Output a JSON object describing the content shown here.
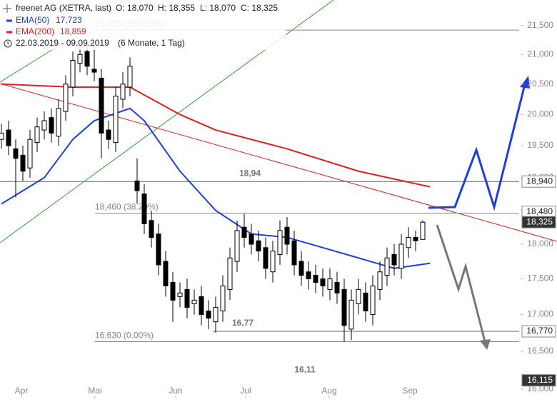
{
  "chart_data": {
    "type": "candlestick",
    "title": "freenet AG (XETRA, last)",
    "ohlc": [
      "O: 18,070",
      "H: 18,355",
      "L: 18,070",
      "C: 18,325"
    ],
    "date_range": "22.03.2019 - 09.09.2019",
    "period": "(6 Monate, 1 Tag)",
    "log_scale": true,
    "x": [
      0,
      2,
      4,
      6,
      8,
      10,
      12,
      14,
      16,
      18,
      20,
      22,
      24,
      26,
      28,
      30,
      32,
      34,
      36,
      38,
      40,
      42,
      44,
      46,
      48,
      50,
      52,
      54,
      56,
      58,
      60,
      62,
      64,
      66,
      68,
      70,
      72,
      74,
      76,
      78,
      80,
      82,
      84,
      86,
      88,
      90,
      92,
      94,
      96,
      98,
      100,
      102,
      104,
      106,
      108,
      110,
      112,
      114,
      116,
      118
    ],
    "open": [
      19.6,
      19.75,
      19.45,
      19.35,
      19.15,
      19.55,
      19.75,
      19.95,
      19.65,
      20.05,
      20.45,
      20.85,
      21.05,
      20.75,
      20.6,
      19.75,
      19.55,
      20.25,
      20.45,
      18.95,
      18.75,
      18.35,
      18.15,
      17.75,
      17.45,
      17.25,
      17.35,
      17.15,
      17.25,
      17.05,
      16.9,
      17.05,
      17.35,
      17.75,
      18.25,
      18.15,
      18.05,
      17.95,
      17.6,
      17.85,
      18.25,
      18.05,
      17.75,
      17.6,
      17.55,
      17.5,
      17.35,
      17.45,
      17.35,
      16.8,
      17.15,
      17.3,
      17.0,
      17.35,
      17.55,
      17.85,
      17.65,
      17.95,
      18.1,
      18.07
    ],
    "high": [
      19.85,
      19.9,
      19.6,
      19.5,
      19.75,
      19.95,
      20.05,
      20.1,
      20.25,
      20.65,
      21.05,
      21.2,
      21.2,
      21.2,
      20.75,
      19.9,
      20.45,
      20.7,
      20.95,
      19.3,
      18.9,
      18.5,
      18.3,
      17.9,
      17.6,
      17.45,
      17.5,
      17.35,
      17.4,
      17.2,
      17.25,
      17.55,
      17.95,
      18.35,
      18.45,
      18.3,
      18.2,
      18.1,
      18.05,
      18.35,
      18.4,
      18.2,
      17.9,
      17.75,
      17.7,
      17.65,
      17.65,
      17.6,
      17.5,
      17.35,
      17.5,
      17.45,
      17.55,
      17.75,
      17.95,
      18.0,
      18.15,
      18.25,
      18.2,
      18.355
    ],
    "low": [
      19.45,
      19.35,
      18.7,
      18.95,
      19.0,
      19.4,
      19.6,
      19.55,
      19.5,
      19.9,
      20.3,
      20.7,
      20.65,
      20.55,
      19.3,
      19.45,
      19.4,
      20.1,
      20.3,
      18.6,
      18.15,
      17.95,
      17.55,
      17.25,
      16.9,
      17.1,
      16.95,
      17.0,
      16.85,
      16.8,
      16.75,
      16.9,
      17.2,
      17.6,
      17.95,
      17.85,
      17.75,
      17.5,
      17.45,
      17.7,
      17.85,
      17.55,
      17.4,
      17.35,
      17.3,
      17.25,
      17.2,
      17.15,
      16.63,
      16.65,
      17.0,
      16.9,
      16.85,
      17.2,
      17.4,
      17.55,
      17.5,
      17.8,
      17.9,
      18.07
    ],
    "close": [
      19.7,
      19.5,
      19.3,
      19.1,
      19.6,
      19.8,
      19.9,
      19.7,
      20.1,
      20.5,
      20.9,
      21.0,
      20.8,
      20.7,
      19.7,
      19.6,
      20.3,
      20.5,
      20.8,
      18.8,
      18.3,
      18.1,
      17.7,
      17.4,
      17.2,
      17.3,
      17.1,
      17.2,
      17.0,
      16.95,
      17.1,
      17.4,
      17.8,
      18.2,
      18.1,
      18.0,
      17.9,
      17.65,
      17.9,
      18.2,
      18.0,
      17.7,
      17.55,
      17.5,
      17.45,
      17.4,
      17.5,
      17.3,
      16.85,
      17.2,
      17.35,
      17.05,
      17.4,
      17.6,
      17.8,
      17.7,
      18.0,
      18.1,
      18.05,
      18.325
    ],
    "series": [
      {
        "name": "EMA(50)",
        "last_label": "17,723",
        "color": "#1f3fd6",
        "x": [
          0,
          12,
          20,
          26,
          36,
          40,
          50,
          60,
          70,
          80,
          90,
          100,
          110,
          120
        ],
        "values": [
          18.6,
          19.0,
          19.6,
          19.9,
          20.1,
          19.9,
          19.1,
          18.5,
          18.15,
          18.1,
          17.95,
          17.8,
          17.65,
          17.723
        ]
      },
      {
        "name": "EMA(200)",
        "last_label": "18,859",
        "color": "#e02020",
        "x": [
          0,
          20,
          36,
          50,
          60,
          80,
          100,
          120
        ],
        "values": [
          20.5,
          20.45,
          20.45,
          20.0,
          19.75,
          19.45,
          19.1,
          18.859
        ]
      }
    ],
    "xlim": [
      0,
      145
    ],
    "ylim": [
      15.88,
      21.95
    ],
    "xticks": [
      {
        "value": 5.6,
        "label": "Apr"
      },
      {
        "value": 26.2,
        "label": "Mai"
      },
      {
        "value": 48.8,
        "label": "Jun"
      },
      {
        "value": 68.4,
        "label": "Jul"
      },
      {
        "value": 91.8,
        "label": "Aug"
      },
      {
        "value": 114.4,
        "label": "Sep"
      }
    ],
    "yticks": [
      {
        "value": 21.5,
        "label": "21,500"
      },
      {
        "value": 21,
        "label": "21,000"
      },
      {
        "value": 20.5,
        "label": "20,500"
      },
      {
        "value": 20,
        "label": "20,000"
      },
      {
        "value": 19.5,
        "label": "19,500"
      },
      {
        "value": 19,
        "label": "19,000"
      },
      {
        "value": 18.5,
        "label": "18,500"
      },
      {
        "value": 18,
        "label": "18,000"
      },
      {
        "value": 17.5,
        "label": "17,500"
      },
      {
        "value": 17,
        "label": "17,000"
      },
      {
        "value": 16.5,
        "label": "16,500"
      },
      {
        "value": 16,
        "label": "16,000"
      }
    ],
    "fib_levels": [
      {
        "value": 21.42,
        "label": "21,420 (100.00%)"
      },
      {
        "value": 18.46,
        "label": "18,460 (38.20%)"
      },
      {
        "value": 16.63,
        "label": "16,630 (0.00%)"
      }
    ],
    "levels": [
      {
        "value": 18.94,
        "label": "18,94"
      },
      {
        "value": 16.77,
        "label": "16,77"
      }
    ],
    "annotations": [
      {
        "value": 16.11,
        "label": "16,11"
      }
    ],
    "price_boxes": [
      {
        "value": 18.94,
        "label": "18,940"
      },
      {
        "value": 18.48,
        "label": "18,480"
      },
      {
        "value": 18.325,
        "label": "18,325",
        "dark": true
      },
      {
        "value": 16.77,
        "label": "16,770"
      },
      {
        "value": 16.115,
        "label": "16,115",
        "dark": true
      }
    ]
  }
}
